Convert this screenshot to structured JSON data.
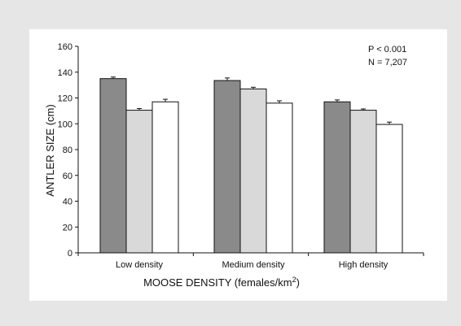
{
  "chart_data": {
    "type": "bar",
    "categories": [
      "Low density",
      "Medium density",
      "High density"
    ],
    "series": [
      {
        "values": [
          135,
          133.5,
          117
        ],
        "errors": [
          1.2,
          2.0,
          1.5
        ],
        "color": "#8a8a8a"
      },
      {
        "values": [
          110.5,
          127,
          110.5
        ],
        "errors": [
          1.3,
          1.3,
          1.0
        ],
        "color": "#d9d9d9"
      },
      {
        "values": [
          117,
          116,
          99.5
        ],
        "errors": [
          2.0,
          1.8,
          1.8
        ],
        "color": "#ffffff"
      }
    ],
    "xlabel": "MOOSE DENSITY (females/km",
    "xlabel_sup": "2",
    "xlabel_close": ")",
    "ylabel": "ANTLER SIZE (cm)",
    "ylim": [
      0,
      160
    ],
    "yticks": [
      "0",
      "20",
      "40",
      "60",
      "80",
      "100",
      "120",
      "140",
      "160"
    ],
    "annotations": [
      "P < 0.001",
      "N = 7,207"
    ],
    "grid": false,
    "legend": "none"
  }
}
